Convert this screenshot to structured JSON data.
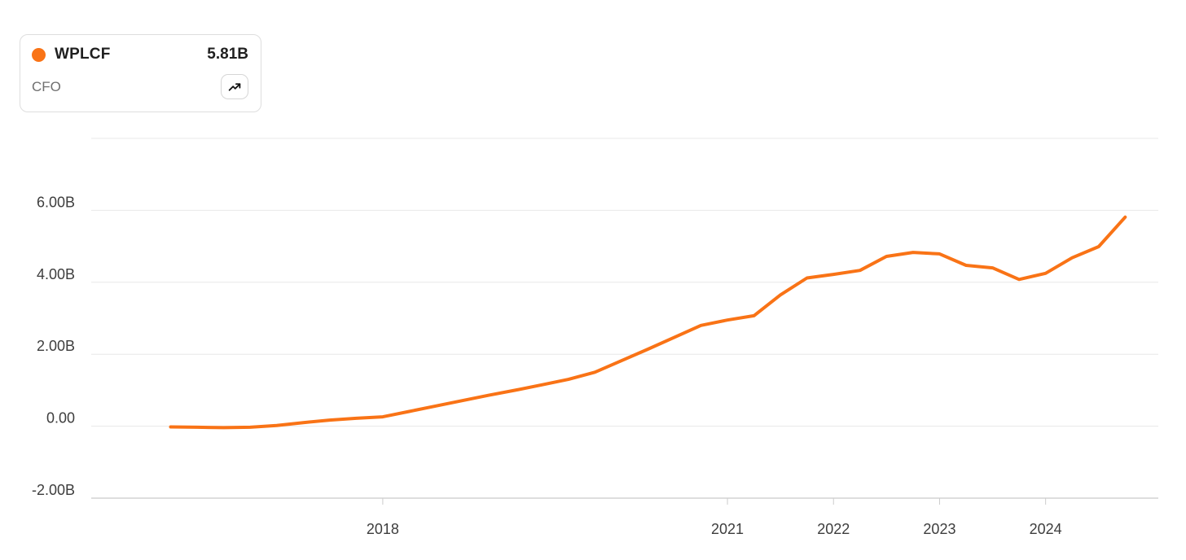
{
  "legend_card": {
    "ticker": "WPLCF",
    "value": "5.81B",
    "metric": "CFO",
    "dot_color": "#f97316",
    "chart_button_icon": "trending-up-icon"
  },
  "colors": {
    "line": "#f97316",
    "grid": "#e8e8e8",
    "axis": "#d4d4d4",
    "tick": "#cccccc",
    "axis_label": "#3d3d3d",
    "card_border": "#dedede",
    "icon": "#111111"
  },
  "chart_data": {
    "type": "line",
    "title": "",
    "xlabel": "",
    "ylabel": "",
    "unit": "B",
    "grid": "horizontal",
    "legend_position": "top-left",
    "ylim": [
      -2,
      8
    ],
    "y_ticks": [
      {
        "label": "6.00B",
        "value": 6
      },
      {
        "label": "4.00B",
        "value": 4
      },
      {
        "label": "2.00B",
        "value": 2
      },
      {
        "label": "0.00",
        "value": 0
      },
      {
        "label": "-2.00B",
        "value": -2
      }
    ],
    "x_ticks": [
      {
        "label": "2018",
        "index": 8
      },
      {
        "label": "2021",
        "index": 21
      },
      {
        "label": "2022",
        "index": 25
      },
      {
        "label": "2023",
        "index": 29
      },
      {
        "label": "2024",
        "index": 33
      }
    ],
    "series": [
      {
        "name": "WPLCF CFO",
        "color": "#f97316",
        "last_value_label": "5.81B",
        "values": [
          -0.02,
          -0.03,
          -0.04,
          -0.03,
          0.02,
          0.1,
          0.17,
          0.22,
          0.26,
          0.41,
          0.56,
          0.71,
          0.86,
          1.0,
          1.15,
          1.3,
          1.5,
          1.82,
          2.14,
          2.47,
          2.8,
          2.95,
          3.07,
          3.65,
          4.12,
          4.22,
          4.33,
          4.72,
          4.83,
          4.79,
          4.47,
          4.4,
          4.08,
          4.25,
          4.68,
          4.99,
          5.81
        ]
      }
    ]
  }
}
